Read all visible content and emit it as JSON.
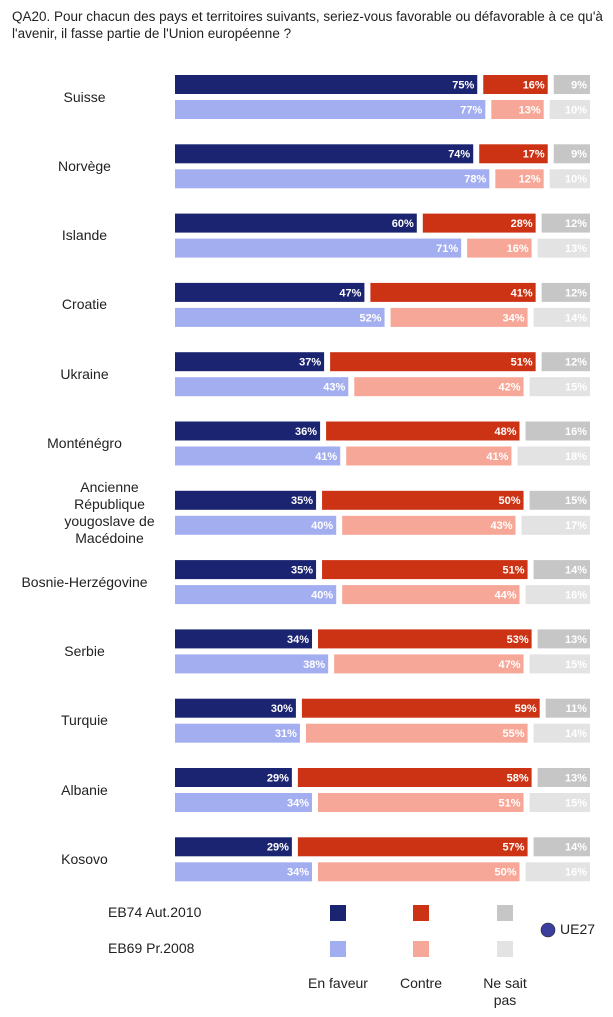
{
  "chart_data": {
    "type": "stacked_bar",
    "orientation": "horizontal",
    "title": "QA20. Pour chacun des pays et territoires suivants, seriez-vous favorable ou défavorable à ce qu'à l'avenir, il fasse partie de l'Union européenne ?",
    "categories": [
      "Suisse",
      "Norvège",
      "Islande",
      "Croatie",
      "Ukraine",
      "Monténégro",
      "Ancienne République yougoslave de Macédoine",
      "Bosnie-Herzégovine",
      "Serbie",
      "Turquie",
      "Albanie",
      "Kosovo"
    ],
    "waves": [
      "EB74 Aut.2010",
      "EB69 Pr.2008"
    ],
    "xlim": [
      0,
      100
    ],
    "series": [
      {
        "name": "En faveur",
        "waves": [
          {
            "color": "#1b2470",
            "values": [
              75,
              74,
              60,
              47,
              37,
              36,
              35,
              35,
              34,
              30,
              29,
              29
            ],
            "value_labels": [
              "75%",
              "74%",
              "60%",
              "47%",
              "37%",
              "36%",
              "35%",
              "35%",
              "34%",
              "30%",
              "29%",
              "29%"
            ]
          },
          {
            "color": "#a3aef0",
            "values": [
              77,
              78,
              71,
              52,
              43,
              41,
              40,
              40,
              38,
              31,
              34,
              34
            ],
            "value_labels": [
              "77%",
              "78%",
              "71%",
              "52%",
              "43%",
              "41%",
              "40%",
              "40%",
              "38%",
              "31%",
              "34%",
              "34%"
            ]
          }
        ]
      },
      {
        "name": "Contre",
        "waves": [
          {
            "color": "#cc3314",
            "values": [
              16,
              17,
              28,
              41,
              51,
              48,
              50,
              51,
              53,
              59,
              58,
              57
            ],
            "value_labels": [
              "16%",
              "17%",
              "28%",
              "41%",
              "51%",
              "48%",
              "50%",
              "51%",
              "53%",
              "59%",
              "58%",
              "57%"
            ]
          },
          {
            "color": "#f6a797",
            "values": [
              13,
              12,
              16,
              34,
              42,
              41,
              43,
              44,
              47,
              55,
              51,
              50
            ],
            "value_labels": [
              "13%",
              "12%",
              "16%",
              "34%",
              "42%",
              "41%",
              "43%",
              "44%",
              "47%",
              "55%",
              "51%",
              "50%"
            ]
          }
        ]
      },
      {
        "name": "Ne sait pas",
        "waves": [
          {
            "color": "#c6c6c6",
            "values": [
              9,
              9,
              12,
              12,
              12,
              16,
              15,
              14,
              13,
              11,
              13,
              14
            ],
            "value_labels": [
              "9%",
              "9%",
              "12%",
              "12%",
              "12%",
              "16%",
              "15%",
              "14%",
              "13%",
              "11%",
              "13%",
              "14%"
            ]
          },
          {
            "color": "#e3e3e3",
            "values": [
              10,
              10,
              13,
              14,
              15,
              18,
              17,
              16,
              15,
              14,
              15,
              16
            ],
            "value_labels": [
              "10%",
              "10%",
              "13%",
              "14%",
              "15%",
              "18%",
              "17%",
              "16%",
              "15%",
              "14%",
              "15%",
              "16%"
            ]
          }
        ]
      }
    ],
    "region_label": "UE27"
  }
}
